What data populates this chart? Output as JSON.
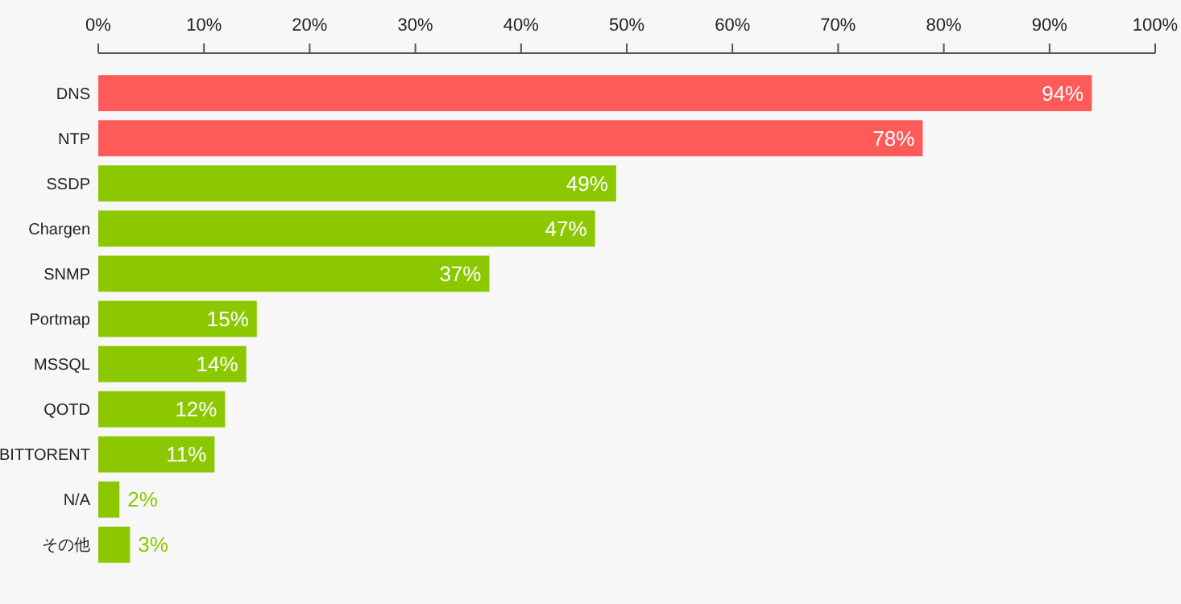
{
  "chart_data": {
    "type": "bar",
    "orientation": "horizontal",
    "categories": [
      "DNS",
      "NTP",
      "SSDP",
      "Chargen",
      "SNMP",
      "Portmap",
      "MSSQL",
      "QOTD",
      "BITTORENT",
      "N/A",
      "その他"
    ],
    "values": [
      94,
      78,
      49,
      47,
      37,
      15,
      14,
      12,
      11,
      2,
      3
    ],
    "colors": [
      "#ff5a5a",
      "#ff5a5a",
      "#8cc800",
      "#8cc800",
      "#8cc800",
      "#8cc800",
      "#8cc800",
      "#8cc800",
      "#8cc800",
      "#8cc800",
      "#8cc800"
    ],
    "xlim": [
      0,
      100
    ],
    "xticks": [
      {
        "value": 0,
        "label": "0%"
      },
      {
        "value": 10,
        "label": "10%"
      },
      {
        "value": 20,
        "label": "20%"
      },
      {
        "value": 30,
        "label": "30%"
      },
      {
        "value": 40,
        "label": "40%"
      },
      {
        "value": 50,
        "label": "50%"
      },
      {
        "value": 60,
        "label": "60%"
      },
      {
        "value": 70,
        "label": "70%"
      },
      {
        "value": 80,
        "label": "80%"
      },
      {
        "value": 90,
        "label": "90%"
      },
      {
        "value": 100,
        "label": "100%"
      }
    ],
    "value_labels": [
      "94%",
      "78%",
      "49%",
      "47%",
      "37%",
      "15%",
      "14%",
      "12%",
      "11%",
      "2%",
      "3%"
    ]
  }
}
